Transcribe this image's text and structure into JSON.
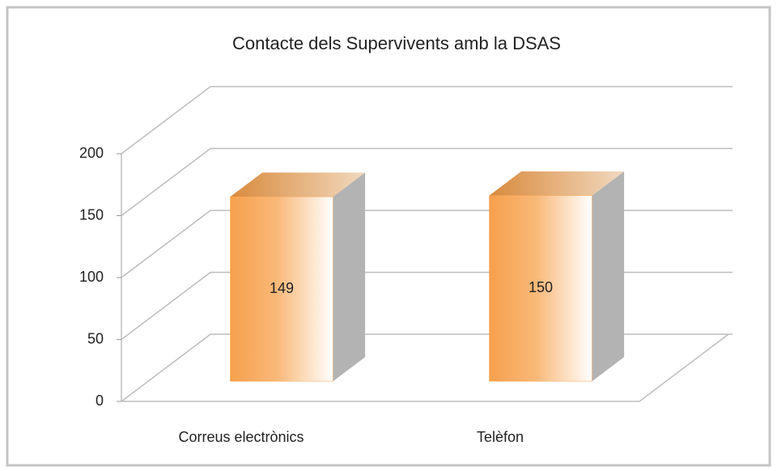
{
  "chart_data": {
    "type": "bar3d",
    "title": "Contacte dels Supervivents amb la DSAS",
    "categories": [
      "Correus electrònics",
      "Telèfon"
    ],
    "values": [
      149,
      150
    ],
    "color": "#f6a04d",
    "ylim": [
      0,
      200
    ],
    "yticks": [
      0,
      50,
      100,
      150,
      200
    ],
    "grid": true
  }
}
